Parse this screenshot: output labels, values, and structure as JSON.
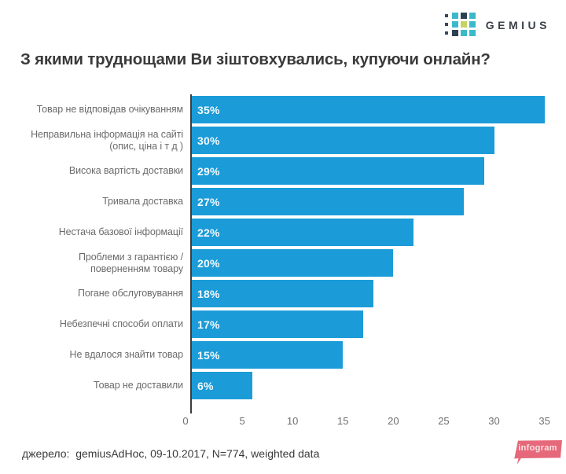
{
  "header": {
    "logo_text": "GEMIUS",
    "logo_dot_pattern": [
      [
        "dot-small",
        "cyan",
        "navy",
        "cyan"
      ],
      [
        "dot-small",
        "cyan",
        "yellow",
        "cyan"
      ],
      [
        "dot-small",
        "navy",
        "cyan",
        "cyan"
      ]
    ]
  },
  "chart_data": {
    "type": "bar",
    "orientation": "horizontal",
    "title": "З якими труднощами Ви зіштовхувались, купуючи онлайн?",
    "categories": [
      "Товар не відповідав очікуванням",
      "Неправильна інформація на сайті (опис, ціна і т д )",
      "Висока вартість доставки",
      "Тривала доставка",
      "Нестача базової інформації",
      "Проблеми з гарантією / поверненням товару",
      "Погане обслуговування",
      "Небезпечні способи оплати",
      "Не вдалося знайти товар",
      "Товар не доставили"
    ],
    "values": [
      35,
      30,
      29,
      27,
      22,
      20,
      18,
      17,
      15,
      6
    ],
    "value_suffix": "%",
    "x_ticks": [
      0,
      5,
      10,
      15,
      20,
      25,
      30,
      35
    ],
    "xlim": [
      0,
      36.2
    ],
    "grid": false,
    "legend": false,
    "bar_color": "#1b9cd8"
  },
  "footer": {
    "source": "джерело:  gemiusAdHoc, 09-10.2017, N=774, weighted data",
    "badge_label": "infogram"
  },
  "colors": {
    "bar": "#1b9cd8",
    "axis_line": "#3d3d3d",
    "title_text": "#3a3a3a",
    "label_text": "#6b6b6b",
    "tick_text": "#6f6f6f",
    "badge_pink": "#e5697a",
    "logo_cyan": "#3cb8cc",
    "logo_navy": "#2e4154",
    "logo_yellow": "#c6d363",
    "logo_dark_dot": "#37495a",
    "logo_text_color": "#3b4149"
  }
}
